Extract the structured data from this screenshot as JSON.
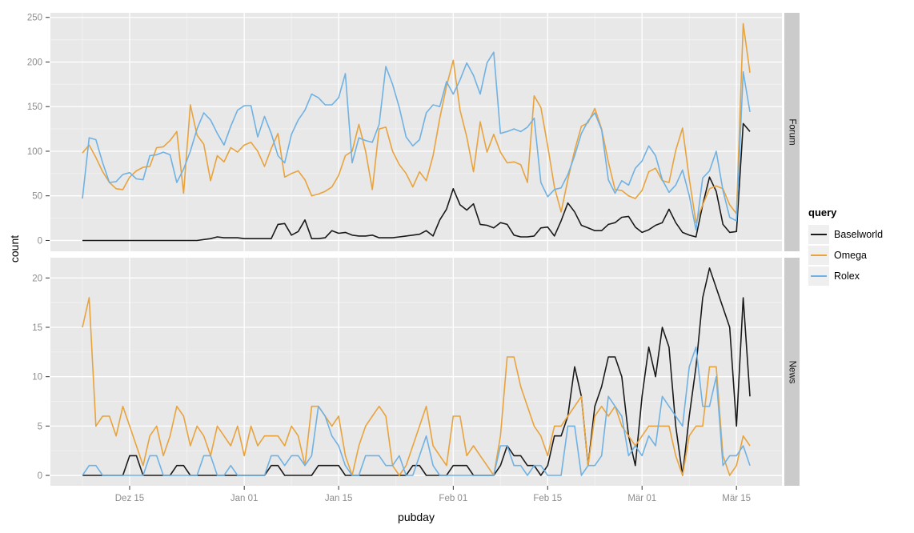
{
  "figure": {
    "y_axis_title": "count",
    "x_axis_title": "pubday",
    "panel_bg": "#e8e8e8",
    "strip_bg": "#cbcbcb",
    "grid_major": "#ffffff",
    "grid_minor": "#f2f2f2",
    "tick_mark_color": "#333333",
    "tick_label_color": "#8c8c8c",
    "facets": {
      "top": "Forum",
      "bottom": "News"
    }
  },
  "legend": {
    "title": "query",
    "items": [
      {
        "label": "Baselworld",
        "color": "#1a1a1a"
      },
      {
        "label": "Omega",
        "color": "#e8a33d"
      },
      {
        "label": "Rolex",
        "color": "#6fb2e3"
      }
    ]
  },
  "chart_data": {
    "type": "line",
    "title": "",
    "xlabel": "pubday",
    "ylabel": "count",
    "x_unit": "daily values, day index 0 = Dec 08, day 99 = Mar 17",
    "n_days": 100,
    "x_tick_days": [
      7,
      24,
      38,
      55,
      69,
      83,
      97
    ],
    "x_tick_labels": [
      "Dez 15",
      "Jan 01",
      "Jan 15",
      "Feb 01",
      "Feb 15",
      "Mär 01",
      "Mär 15"
    ],
    "x_minor_days": [
      0,
      15.5,
      31,
      46.5,
      62,
      76,
      90
    ],
    "legend_position": "right",
    "grid": true,
    "panels": [
      {
        "facet": "Forum",
        "ylim": [
          0,
          250
        ],
        "yticks": [
          0,
          50,
          100,
          150,
          200,
          250
        ],
        "yminor": [
          25,
          75,
          125,
          175,
          225
        ],
        "series": [
          {
            "name": "Baselworld",
            "color": "#1a1a1a",
            "values": [
              0,
              0,
              0,
              0,
              0,
              0,
              0,
              0,
              0,
              0,
              0,
              0,
              0,
              0,
              0,
              0,
              0,
              0,
              1,
              2,
              4,
              3,
              3,
              3,
              2,
              2,
              2,
              2,
              2,
              18,
              19,
              6,
              10,
              23,
              2,
              2,
              3,
              11,
              8,
              9,
              6,
              5,
              5,
              6,
              3,
              3,
              3,
              4,
              5,
              6,
              7,
              11,
              5,
              23,
              35,
              58,
              40,
              34,
              41,
              18,
              17,
              14,
              20,
              18,
              6,
              4,
              4,
              5,
              14,
              15,
              5,
              22,
              42,
              32,
              17,
              14,
              11,
              11,
              18,
              20,
              26,
              27,
              15,
              9,
              12,
              17,
              20,
              35,
              20,
              9,
              6,
              4,
              40,
              71,
              55,
              18,
              9,
              10,
              131,
              122
            ]
          },
          {
            "name": "Omega",
            "color": "#e8a33d",
            "values": [
              98,
              107,
              93,
              77,
              65,
              58,
              57,
              71,
              78,
              82,
              83,
              104,
              105,
              112,
              122,
              53,
              152,
              118,
              108,
              67,
              95,
              88,
              104,
              99,
              107,
              110,
              100,
              83,
              103,
              120,
              71,
              75,
              78,
              68,
              50,
              52,
              55,
              60,
              73,
              95,
              100,
              130,
              100,
              57,
              125,
              127,
              100,
              85,
              75,
              60,
              77,
              67,
              95,
              137,
              173,
              202,
              146,
              116,
              77,
              133,
              99,
              119,
              99,
              87,
              88,
              85,
              65,
              162,
              149,
              106,
              60,
              32,
              68,
              101,
              128,
              132,
              148,
              125,
              88,
              57,
              56,
              50,
              47,
              56,
              77,
              81,
              67,
              65,
              101,
              126,
              69,
              20,
              40,
              58,
              61,
              58,
              40,
              30,
              243,
              188
            ]
          },
          {
            "name": "Rolex",
            "color": "#6fb2e3",
            "values": [
              47,
              115,
              113,
              87,
              65,
              66,
              74,
              76,
              69,
              68,
              95,
              96,
              99,
              96,
              65,
              80,
              100,
              125,
              143,
              135,
              120,
              107,
              128,
              146,
              151,
              151,
              116,
              139,
              120,
              95,
              87,
              119,
              135,
              146,
              164,
              160,
              152,
              152,
              160,
              187,
              87,
              115,
              112,
              110,
              130,
              195,
              175,
              149,
              116,
              106,
              113,
              143,
              152,
              150,
              178,
              164,
              180,
              199,
              185,
              164,
              199,
              211,
              120,
              122,
              125,
              122,
              127,
              137,
              65,
              49,
              57,
              59,
              74,
              95,
              120,
              134,
              143,
              124,
              68,
              53,
              67,
              62,
              81,
              89,
              106,
              95,
              68,
              54,
              62,
              79,
              50,
              12,
              70,
              78,
              100,
              56,
              26,
              22,
              189,
              144
            ]
          }
        ]
      },
      {
        "facet": "News",
        "ylim": [
          0,
          20
        ],
        "yticks": [
          0,
          5,
          10,
          15,
          20
        ],
        "yminor": [
          2.5,
          7.5,
          12.5,
          17.5
        ],
        "series": [
          {
            "name": "Baselworld",
            "color": "#1a1a1a",
            "values": [
              0,
              0,
              0,
              0,
              0,
              0,
              0,
              2,
              2,
              0,
              0,
              0,
              0,
              0,
              1,
              1,
              0,
              0,
              0,
              0,
              0,
              0,
              0,
              0,
              0,
              0,
              0,
              0,
              1,
              1,
              0,
              0,
              0,
              0,
              0,
              1,
              1,
              1,
              1,
              0,
              0,
              0,
              0,
              0,
              0,
              0,
              0,
              0,
              0,
              1,
              1,
              0,
              0,
              0,
              0,
              1,
              1,
              1,
              0,
              0,
              0,
              0,
              1,
              3,
              2,
              2,
              1,
              1,
              0,
              1,
              4,
              4,
              6,
              11,
              8,
              1,
              7,
              9,
              12,
              12,
              10,
              4,
              1,
              8,
              13,
              10,
              15,
              13,
              5,
              0,
              6,
              11,
              18,
              21,
              19,
              17,
              15,
              5,
              18,
              8
            ]
          },
          {
            "name": "Omega",
            "color": "#e8a33d",
            "values": [
              15,
              18,
              5,
              6,
              6,
              4,
              7,
              5,
              3,
              1,
              4,
              5,
              2,
              4,
              7,
              6,
              3,
              5,
              4,
              2,
              5,
              4,
              3,
              5,
              2,
              5,
              3,
              4,
              4,
              4,
              3,
              5,
              4,
              1,
              7,
              7,
              6,
              5,
              6,
              2,
              0,
              3,
              5,
              6,
              7,
              6,
              1,
              0,
              1,
              3,
              5,
              7,
              3,
              2,
              1,
              6,
              6,
              2,
              3,
              2,
              1,
              0,
              4,
              12,
              12,
              9,
              7,
              5,
              4,
              2,
              5,
              5,
              6,
              7,
              8,
              1,
              6,
              7,
              6,
              7,
              5,
              4,
              3,
              4,
              5,
              5,
              5,
              5,
              2,
              0,
              4,
              5,
              5,
              11,
              11,
              2,
              0,
              1,
              4,
              3
            ]
          },
          {
            "name": "Rolex",
            "color": "#6fb2e3",
            "values": [
              0,
              1,
              1,
              0,
              0,
              0,
              0,
              0,
              0,
              0,
              2,
              2,
              0,
              0,
              0,
              0,
              0,
              0,
              2,
              2,
              0,
              0,
              1,
              0,
              0,
              0,
              0,
              0,
              2,
              2,
              1,
              2,
              2,
              1,
              2,
              7,
              6,
              4,
              3,
              1,
              0,
              0,
              2,
              2,
              2,
              1,
              1,
              2,
              0,
              0,
              2,
              4,
              1,
              0,
              0,
              0,
              0,
              0,
              0,
              0,
              0,
              0,
              3,
              3,
              1,
              1,
              0,
              1,
              1,
              0,
              0,
              0,
              5,
              5,
              0,
              1,
              1,
              2,
              8,
              7,
              6,
              2,
              3,
              2,
              4,
              3,
              8,
              7,
              6,
              5,
              11,
              13,
              7,
              7,
              10,
              1,
              2,
              2,
              3,
              1
            ]
          }
        ]
      }
    ]
  }
}
